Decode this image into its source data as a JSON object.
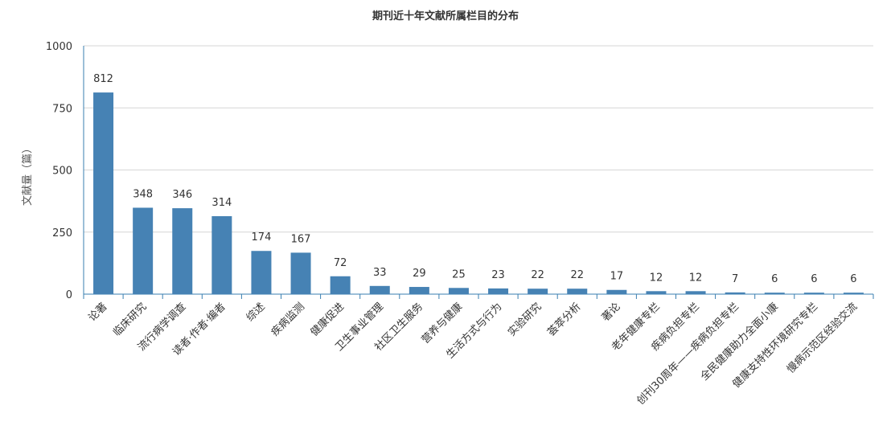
{
  "chart_data": {
    "type": "bar",
    "title": "期刊近十年文献所属栏目的分布",
    "ylabel": "文献量（篇）",
    "xlabel": "",
    "ylim": [
      0,
      1000
    ],
    "yticks": [
      0,
      250,
      500,
      750,
      1000
    ],
    "grid": true,
    "legend": "none",
    "bar_color": "#4682b4",
    "categories": [
      "论著",
      "临床研究",
      "流行病学调查",
      "读者·作者·编者",
      "综述",
      "疾病监测",
      "健康促进",
      "卫生事业管理",
      "社区卫生服务",
      "营养与健康",
      "生活方式与行为",
      "实验研究",
      "荟萃分析",
      "著论",
      "老年健康专栏",
      "疾病负担专栏",
      "创刊30周年——疾病负担专栏",
      "全民健康助力全面小康",
      "健康支持性环境研究专栏",
      "慢病示范区经验交流"
    ],
    "values": [
      812,
      348,
      346,
      314,
      174,
      167,
      72,
      33,
      29,
      25,
      23,
      22,
      22,
      17,
      12,
      12,
      7,
      6,
      6,
      6
    ]
  }
}
